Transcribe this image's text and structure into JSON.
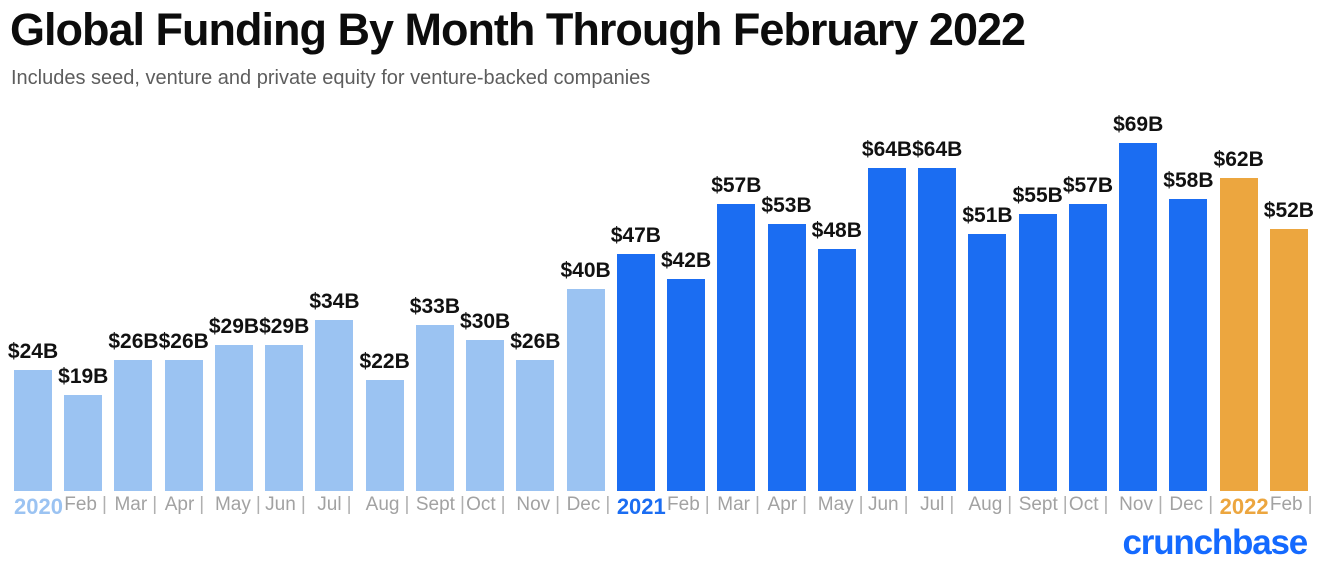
{
  "header": {
    "title": "Global Funding By Month Through February 2022",
    "subtitle": "Includes seed, venture and private equity for venture-backed companies"
  },
  "footer": {
    "logo_text": "crunchbase",
    "logo_color": "#146aff"
  },
  "chart_data": {
    "type": "bar",
    "title": "Global Funding By Month Through February 2022",
    "subtitle": "Includes seed, venture and private equity for venture-backed companies",
    "unit": "USD billions",
    "ylim": [
      0,
      69
    ],
    "grid": false,
    "legend": "none",
    "value_label_color": "#111111",
    "axis_text_color": "#a2a2a2",
    "series_colors": {
      "2020": "#9bc3f2",
      "2021": "#1b6df2",
      "2022": "#eca63f"
    },
    "bars": [
      {
        "axis_label": "2020",
        "is_year_label": true,
        "year": "2020",
        "month": "Jan",
        "value": 24,
        "value_label": "$24B"
      },
      {
        "axis_label": "Feb",
        "is_year_label": false,
        "year": "2020",
        "month": "Feb",
        "value": 19,
        "value_label": "$19B"
      },
      {
        "axis_label": "Mar",
        "is_year_label": false,
        "year": "2020",
        "month": "Mar",
        "value": 26,
        "value_label": "$26B"
      },
      {
        "axis_label": "Apr",
        "is_year_label": false,
        "year": "2020",
        "month": "Apr",
        "value": 26,
        "value_label": "$26B"
      },
      {
        "axis_label": "May",
        "is_year_label": false,
        "year": "2020",
        "month": "May",
        "value": 29,
        "value_label": "$29B"
      },
      {
        "axis_label": "Jun",
        "is_year_label": false,
        "year": "2020",
        "month": "Jun",
        "value": 29,
        "value_label": "$29B"
      },
      {
        "axis_label": "Jul",
        "is_year_label": false,
        "year": "2020",
        "month": "Jul",
        "value": 34,
        "value_label": "$34B"
      },
      {
        "axis_label": "Aug",
        "is_year_label": false,
        "year": "2020",
        "month": "Aug",
        "value": 22,
        "value_label": "$22B"
      },
      {
        "axis_label": "Sept",
        "is_year_label": false,
        "year": "2020",
        "month": "Sept",
        "value": 33,
        "value_label": "$33B"
      },
      {
        "axis_label": "Oct",
        "is_year_label": false,
        "year": "2020",
        "month": "Oct",
        "value": 30,
        "value_label": "$30B"
      },
      {
        "axis_label": "Nov",
        "is_year_label": false,
        "year": "2020",
        "month": "Nov",
        "value": 26,
        "value_label": "$26B"
      },
      {
        "axis_label": "Dec",
        "is_year_label": false,
        "year": "2020",
        "month": "Dec",
        "value": 40,
        "value_label": "$40B"
      },
      {
        "axis_label": "2021",
        "is_year_label": true,
        "year": "2021",
        "month": "Jan",
        "value": 47,
        "value_label": "$47B"
      },
      {
        "axis_label": "Feb",
        "is_year_label": false,
        "year": "2021",
        "month": "Feb",
        "value": 42,
        "value_label": "$42B"
      },
      {
        "axis_label": "Mar",
        "is_year_label": false,
        "year": "2021",
        "month": "Mar",
        "value": 57,
        "value_label": "$57B"
      },
      {
        "axis_label": "Apr",
        "is_year_label": false,
        "year": "2021",
        "month": "Apr",
        "value": 53,
        "value_label": "$53B"
      },
      {
        "axis_label": "May",
        "is_year_label": false,
        "year": "2021",
        "month": "May",
        "value": 48,
        "value_label": "$48B"
      },
      {
        "axis_label": "Jun",
        "is_year_label": false,
        "year": "2021",
        "month": "Jun",
        "value": 64,
        "value_label": "$64B"
      },
      {
        "axis_label": "Jul",
        "is_year_label": false,
        "year": "2021",
        "month": "Jul",
        "value": 64,
        "value_label": "$64B"
      },
      {
        "axis_label": "Aug",
        "is_year_label": false,
        "year": "2021",
        "month": "Aug",
        "value": 51,
        "value_label": "$51B"
      },
      {
        "axis_label": "Sept",
        "is_year_label": false,
        "year": "2021",
        "month": "Sept",
        "value": 55,
        "value_label": "$55B"
      },
      {
        "axis_label": "Oct",
        "is_year_label": false,
        "year": "2021",
        "month": "Oct",
        "value": 57,
        "value_label": "$57B"
      },
      {
        "axis_label": "Nov",
        "is_year_label": false,
        "year": "2021",
        "month": "Nov",
        "value": 69,
        "value_label": "$69B"
      },
      {
        "axis_label": "Dec",
        "is_year_label": false,
        "year": "2021",
        "month": "Dec",
        "value": 58,
        "value_label": "$58B"
      },
      {
        "axis_label": "2022",
        "is_year_label": true,
        "year": "2022",
        "month": "Jan",
        "value": 62,
        "value_label": "$62B"
      },
      {
        "axis_label": "Feb",
        "is_year_label": false,
        "year": "2022",
        "month": "Feb",
        "value": 52,
        "value_label": "$52B"
      }
    ]
  }
}
